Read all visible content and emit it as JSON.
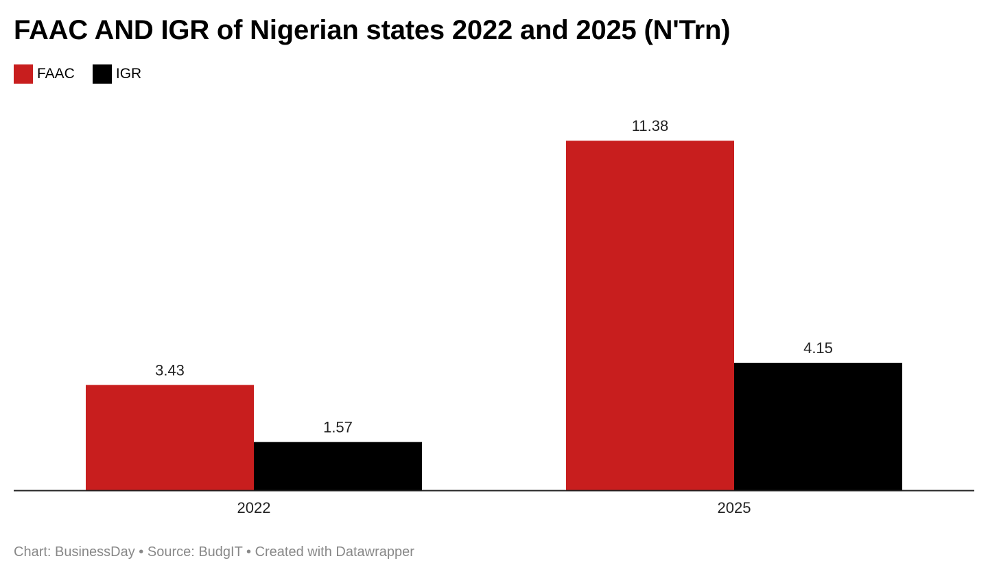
{
  "chart_data": {
    "type": "bar",
    "title": "FAAC AND IGR of Nigerian states 2022 and 2025 (N'Trn)",
    "categories": [
      "2022",
      "2025"
    ],
    "series": [
      {
        "name": "FAAC",
        "values": [
          3.43,
          11.38
        ],
        "labels": [
          "3.43",
          "11.38"
        ],
        "color": "#c81e1e"
      },
      {
        "name": "IGR",
        "values": [
          1.57,
          4.15
        ],
        "labels": [
          "1.57",
          "4.15"
        ],
        "color": "#000000"
      }
    ],
    "ylim": [
      0,
      12.5
    ],
    "grid": false,
    "legend": "top-left",
    "data_labels": true
  },
  "footer": {
    "text": "Chart: BusinessDay • Source: BudgIT • Created with Datawrapper"
  }
}
